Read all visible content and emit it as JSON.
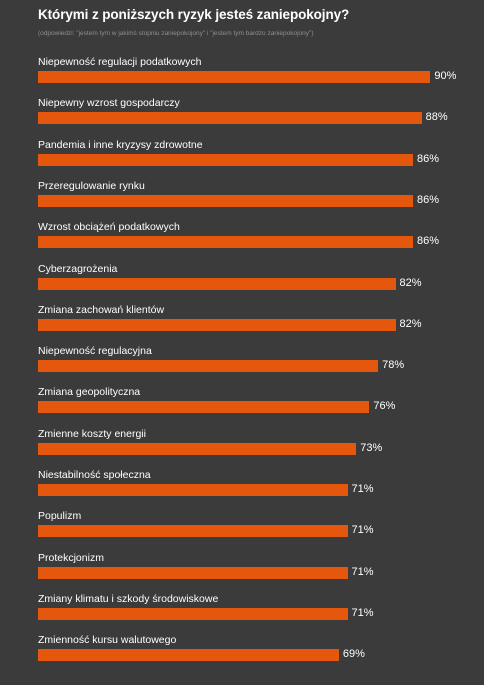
{
  "header": {
    "title": "Którymi z poniższych ryzyk jesteś zaniepokojny?",
    "subtitle": "(odpowiedzi: \"jestem tym w jakimś stopniu zaniepokojony\" i \"jestem tym bardzo zaniepokojony\")"
  },
  "colors": {
    "background": "#3b3b3b",
    "bar": "#e5570d",
    "text": "#ffffff",
    "subtitle": "#8f8f8f"
  },
  "chart_data": {
    "type": "bar",
    "orientation": "horizontal",
    "title": "Którymi z poniższych ryzyk jesteś zaniepokojny?",
    "subtitle": "(odpowiedzi: \"jestem tym w jakimś stopniu zaniepokojony\" i \"jestem tym bardzo zaniepokojony\")",
    "unit": "%",
    "xlim": [
      0,
      100
    ],
    "grid": false,
    "categories": [
      "Niepewność regulacji podatkowych",
      "Niepewny wzrost gospodarczy",
      "Pandemia i inne kryzysy zdrowotne",
      "Przeregulowanie rynku",
      "Wzrost obciążeń podatkowych",
      "Cyberzagrożenia",
      "Zmiana zachowań klientów",
      "Niepewność regulacyjna",
      "Zmiana geopolityczna",
      "Zmienne koszty energii",
      "Niestabilność społeczna",
      "Populizm",
      "Protekcjonizm",
      "Zmiany klimatu i szkody środowiskowe",
      "Zmienność kursu walutowego"
    ],
    "values": [
      90,
      88,
      86,
      86,
      86,
      82,
      82,
      78,
      76,
      73,
      71,
      71,
      71,
      71,
      69
    ],
    "value_labels": [
      "90%",
      "88%",
      "86%",
      "86%",
      "86%",
      "82%",
      "82%",
      "78%",
      "76%",
      "73%",
      "71%",
      "71%",
      "71%",
      "71%",
      "69%"
    ]
  }
}
